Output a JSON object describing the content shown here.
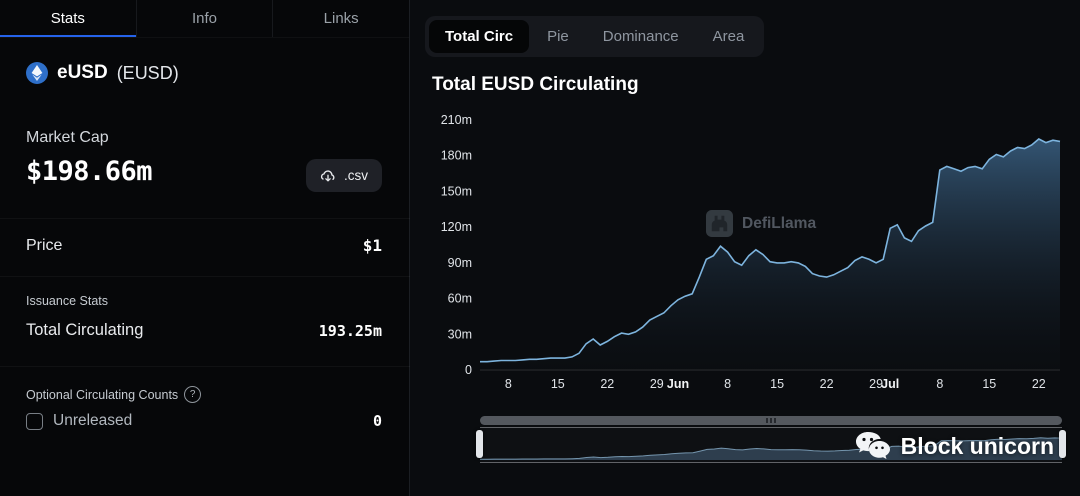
{
  "left_panel": {
    "tabs": [
      {
        "label": "Stats",
        "active": true
      },
      {
        "label": "Info",
        "active": false
      },
      {
        "label": "Links",
        "active": false
      }
    ],
    "token": {
      "name": "eUSD",
      "symbol": "(EUSD)",
      "icon": "eusd-token-icon",
      "icon_color": "#2e6fc9"
    },
    "market_cap": {
      "label": "Market Cap",
      "value": "$198.66m"
    },
    "csv_button_label": ".csv",
    "csv_button_icon": "cloud-download-icon",
    "price": {
      "label": "Price",
      "value": "$1"
    },
    "issuance": {
      "section_label": "Issuance Stats",
      "row_label": "Total Circulating",
      "row_value": "193.25m"
    },
    "optional": {
      "section_label": "Optional Circulating Counts",
      "help_icon": "question-mark-icon",
      "checkbox_label": "Unreleased",
      "checkbox_checked": false,
      "value": "0"
    }
  },
  "chart_panel": {
    "tabs": [
      {
        "label": "Total Circ",
        "active": true
      },
      {
        "label": "Pie",
        "active": false
      },
      {
        "label": "Dominance",
        "active": false
      },
      {
        "label": "Area",
        "active": false
      }
    ],
    "title": "Total EUSD Circulating",
    "watermark": "DefiLlama",
    "watermark_icon": "defillama-llama-icon",
    "brand_watermark": "Block unicorn",
    "brand_icon": "wechat-icon"
  },
  "chart_data": {
    "type": "area",
    "title": "Total EUSD Circulating",
    "xlabel": "",
    "ylabel": "",
    "ylim": [
      0,
      210
    ],
    "grid": false,
    "legend_position": "none",
    "yticks": [
      0,
      30,
      60,
      90,
      120,
      150,
      180,
      210
    ],
    "ytick_labels": [
      "0",
      "30m",
      "60m",
      "90m",
      "120m",
      "150m",
      "180m",
      "210m"
    ],
    "x": [
      "May 4",
      "May 5",
      "May 6",
      "May 7",
      "May 8",
      "May 9",
      "May 10",
      "May 11",
      "May 12",
      "May 13",
      "May 14",
      "May 15",
      "May 16",
      "May 17",
      "May 18",
      "May 19",
      "May 20",
      "May 21",
      "May 22",
      "May 23",
      "May 24",
      "May 25",
      "May 26",
      "May 27",
      "May 28",
      "May 29",
      "May 30",
      "May 31",
      "Jun 1",
      "Jun 2",
      "Jun 3",
      "Jun 4",
      "Jun 5",
      "Jun 6",
      "Jun 7",
      "Jun 8",
      "Jun 9",
      "Jun 10",
      "Jun 11",
      "Jun 12",
      "Jun 13",
      "Jun 14",
      "Jun 15",
      "Jun 16",
      "Jun 17",
      "Jun 18",
      "Jun 19",
      "Jun 20",
      "Jun 21",
      "Jun 22",
      "Jun 23",
      "Jun 24",
      "Jun 25",
      "Jun 26",
      "Jun 27",
      "Jun 28",
      "Jun 29",
      "Jun 30",
      "Jul 1",
      "Jul 2",
      "Jul 3",
      "Jul 4",
      "Jul 5",
      "Jul 6",
      "Jul 7",
      "Jul 8",
      "Jul 9",
      "Jul 10",
      "Jul 11",
      "Jul 12",
      "Jul 13",
      "Jul 14",
      "Jul 15",
      "Jul 16",
      "Jul 17",
      "Jul 18",
      "Jul 19",
      "Jul 20",
      "Jul 21",
      "Jul 22",
      "Jul 23",
      "Jul 24",
      "Jul 25"
    ],
    "values": [
      7,
      7,
      7.5,
      8,
      8,
      8,
      8.5,
      9,
      9,
      9.5,
      10,
      10,
      10,
      11,
      14,
      22,
      26,
      21,
      24,
      28,
      31,
      30,
      32,
      36,
      42,
      45,
      48,
      54,
      59,
      62,
      64,
      78,
      93,
      96,
      104,
      99,
      91,
      88,
      96,
      101,
      97,
      91,
      90,
      90,
      91,
      90,
      87,
      81,
      79,
      78,
      80,
      83,
      86,
      92,
      95,
      93,
      90,
      93,
      119,
      122,
      111,
      108,
      117,
      121,
      124,
      168,
      171,
      169,
      167,
      170,
      171,
      169,
      177,
      181,
      179,
      184,
      187,
      186,
      189,
      194,
      191,
      193,
      192
    ],
    "xticks": [
      {
        "i": 4,
        "label": "8"
      },
      {
        "i": 11,
        "label": "15"
      },
      {
        "i": 18,
        "label": "22"
      },
      {
        "i": 25,
        "label": "29"
      },
      {
        "i": 28,
        "label": "Jun",
        "bold": true
      },
      {
        "i": 35,
        "label": "8"
      },
      {
        "i": 42,
        "label": "15"
      },
      {
        "i": 49,
        "label": "22"
      },
      {
        "i": 56,
        "label": "29"
      },
      {
        "i": 58,
        "label": "Jul",
        "bold": true
      },
      {
        "i": 65,
        "label": "8"
      },
      {
        "i": 72,
        "label": "15"
      },
      {
        "i": 79,
        "label": "22"
      }
    ],
    "line_color": "#7db4de",
    "area_top": "rgba(62,103,140,0.80)",
    "area_bottom": "rgba(15,22,30,0.10)"
  }
}
